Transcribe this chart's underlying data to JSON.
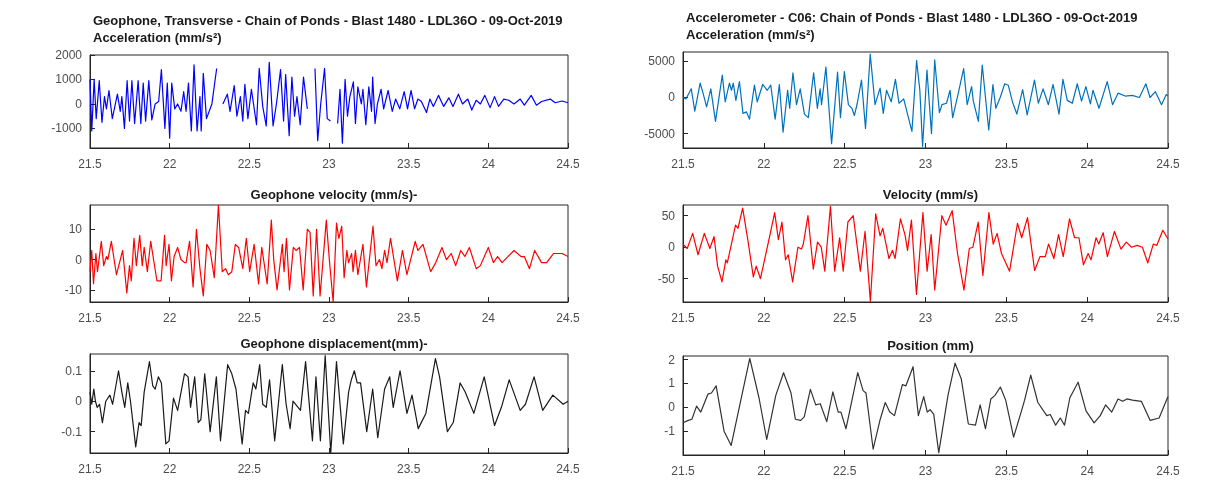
{
  "chart_data": [
    {
      "type": "line",
      "title": "Geophone, Transverse - Chain of Ponds - Blast 1480 - LDL36O - 09-Oct-2019",
      "subtitle": "Acceleration (mm/s²)",
      "color": "#0000ff",
      "xlim": [
        21.5,
        24.5
      ],
      "xticks": [
        21.5,
        22,
        22.5,
        23,
        23.5,
        24,
        24.5
      ],
      "ylim": [
        -1800,
        2000
      ],
      "yticks": [
        -1000,
        0,
        1000,
        2000
      ],
      "x": [
        21.5,
        21.511,
        21.526,
        21.539,
        21.558,
        21.575,
        21.591,
        21.603,
        21.619,
        21.64,
        21.672,
        21.69,
        21.7,
        21.716,
        21.733,
        21.748,
        21.763,
        21.78,
        21.802,
        21.819,
        21.834,
        21.849,
        21.869,
        21.888,
        21.909,
        21.931,
        21.948,
        21.97,
        21.985,
        22.0,
        22.013,
        22.032,
        22.05,
        22.071,
        22.088,
        22.103,
        22.118,
        22.136,
        22.153,
        22.172,
        22.19,
        22.198,
        22.211,
        22.231,
        22.265,
        22.295,
        22.317,
        22.334,
        22.362,
        22.379,
        22.405,
        22.422,
        22.444,
        22.459,
        22.472,
        22.491,
        22.513,
        22.545,
        22.562,
        22.584,
        22.606,
        22.625,
        22.649,
        22.67,
        22.696,
        22.715,
        22.728,
        22.75,
        22.767,
        22.784,
        22.799,
        22.819,
        22.84,
        22.864,
        22.89,
        22.912,
        22.929,
        22.948,
        22.972,
        22.989,
        23.009,
        23.034,
        23.054,
        23.069,
        23.084,
        23.101,
        23.116,
        23.131,
        23.153,
        23.166,
        23.181,
        23.203,
        23.213,
        23.231,
        23.25,
        23.267,
        23.274,
        23.289,
        23.304,
        23.327,
        23.343,
        23.371,
        23.397,
        23.418,
        23.444,
        23.472,
        23.493,
        23.515,
        23.537,
        23.558,
        23.58,
        23.612,
        23.633,
        23.655,
        23.687,
        23.72,
        23.752,
        23.778,
        23.812,
        23.838,
        23.871,
        23.896,
        23.924,
        23.95,
        23.978,
        24.011,
        24.039,
        24.064,
        24.097,
        24.129,
        24.161,
        24.2,
        24.226,
        24.269,
        24.302,
        24.334,
        24.388,
        24.42,
        24.463,
        24.5
      ],
      "values": [
        1000,
        -1100,
        1000,
        -600,
        950,
        -750,
        300,
        -200,
        550,
        -600,
        400,
        -300,
        300,
        -1000,
        950,
        -700,
        950,
        -800,
        950,
        -800,
        850,
        -700,
        950,
        -650,
        0,
        100,
        1400,
        -1000,
        850,
        -1400,
        850,
        -200,
        0,
        -300,
        500,
        -300,
        850,
        -1100,
        1600,
        -1100,
        300,
        -1100,
        1250,
        -600,
        0,
        1450,
        null,
        0,
        400,
        -300,
        750,
        -500,
        300,
        -700,
        800,
        -600,
        600,
        -850,
        1450,
        -100,
        -900,
        1700,
        -900,
        0,
        1400,
        -700,
        1200,
        -1300,
        1100,
        -500,
        300,
        -850,
        1100,
        -200,
        null,
        1450,
        -1500,
        0,
        1450,
        -600,
        -700,
        null,
        -800,
        600,
        -1600,
        1000,
        -500,
        300,
        900,
        -800,
        700,
        0,
        600,
        -850,
        700,
        -300,
        1100,
        -800,
        0,
        600,
        -200,
        550,
        -300,
        200,
        -200,
        500,
        -200,
        550,
        -200,
        200,
        100,
        -350,
        200,
        -100,
        350,
        -100,
        250,
        -100,
        400,
        0,
        200,
        -250,
        150,
        0,
        350,
        -150,
        300,
        -100,
        200,
        150,
        0,
        200,
        -50,
        350,
        -50,
        100,
        200,
        50,
        120,
        50
      ]
    },
    {
      "type": "line",
      "title": "Geophone velocity (mm/s)-",
      "color": "#ff0000",
      "xlim": [
        21.5,
        24.5
      ],
      "xticks": [
        21.5,
        22,
        22.5,
        23,
        23.5,
        24,
        24.5
      ],
      "ylim": [
        -14,
        18
      ],
      "yticks": [
        -10,
        0,
        10
      ],
      "x": [
        21.5,
        21.511,
        21.522,
        21.537,
        21.547,
        21.571,
        21.586,
        21.603,
        21.612,
        21.634,
        21.666,
        21.705,
        21.731,
        21.748,
        21.759,
        21.776,
        21.791,
        21.812,
        21.828,
        21.84,
        21.86,
        21.881,
        21.899,
        21.92,
        21.946,
        21.968,
        21.978,
        21.996,
        22.011,
        22.028,
        22.05,
        22.071,
        22.093,
        22.103,
        22.125,
        22.147,
        22.168,
        22.19,
        22.211,
        22.233,
        22.254,
        22.28,
        22.306,
        22.33,
        22.351,
        22.368,
        22.39,
        22.412,
        22.433,
        22.459,
        22.481,
        22.502,
        22.53,
        22.558,
        22.578,
        22.612,
        22.638,
        22.653,
        22.674,
        22.707,
        22.718,
        22.733,
        22.752,
        22.776,
        22.793,
        22.815,
        22.838,
        22.864,
        22.881,
        22.901,
        22.922,
        22.944,
        22.983,
        23.002,
        23.026,
        23.047,
        23.062,
        23.08,
        23.095,
        23.112,
        23.123,
        23.142,
        23.151,
        23.166,
        23.181,
        23.213,
        23.235,
        23.276,
        23.295,
        23.317,
        23.332,
        23.349,
        23.364,
        23.386,
        23.429,
        23.461,
        23.489,
        23.541,
        23.558,
        23.59,
        23.638,
        23.67,
        23.709,
        23.737,
        23.767,
        23.795,
        23.827,
        23.853,
        23.881,
        23.924,
        23.95,
        24.0,
        24.032,
        24.058,
        24.086,
        24.161,
        24.205,
        24.226,
        24.258,
        24.291,
        24.334,
        24.366,
        24.409,
        24.463,
        24.5
      ],
      "values": [
        -4,
        3,
        -8,
        2,
        -4,
        6,
        -2,
        1,
        0,
        6,
        -5,
        3,
        -11,
        -2,
        -7,
        7,
        -2,
        8,
        -2,
        4,
        -4,
        6,
        0,
        -7,
        -7,
        8,
        -2,
        5,
        -7,
        1,
        4,
        0,
        -1,
        -1,
        6,
        -9,
        10,
        -3,
        -12,
        5,
        3,
        -6,
        18,
        -4,
        -3,
        -5,
        -4,
        5,
        4,
        -3,
        7,
        -4,
        5,
        -8,
        4,
        -8,
        13,
        0,
        -10,
        5,
        -4,
        7,
        -10,
        4,
        3,
        4,
        -10,
        10,
        9,
        -12,
        10,
        -12,
        13,
        0,
        -14,
        12,
        7,
        11,
        -6,
        3,
        -1,
        2,
        -4,
        3,
        -5,
        5,
        -9,
        11,
        -2,
        0,
        -3,
        3,
        -1,
        7,
        -7,
        3,
        -5,
        6,
        3,
        5,
        -4,
        -1,
        4,
        0,
        2,
        -2,
        3,
        1,
        4,
        -3,
        -2,
        4,
        -1,
        1,
        -1,
        3,
        1,
        1,
        -3,
        3,
        -1,
        -1,
        2,
        2,
        1
      ]
    },
    {
      "type": "line",
      "title": "Geophone displacement(mm)-",
      "color": "#1a1a1a",
      "xlim": [
        21.5,
        24.5
      ],
      "xticks": [
        21.5,
        22,
        22.5,
        23,
        23.5,
        24,
        24.5
      ],
      "ylim": [
        -0.17,
        0.155
      ],
      "yticks": [
        -0.1,
        0,
        0.1
      ],
      "x": [
        21.5,
        21.511,
        21.524,
        21.534,
        21.545,
        21.56,
        21.578,
        21.599,
        21.625,
        21.642,
        21.679,
        21.7,
        21.718,
        21.737,
        21.754,
        21.787,
        21.808,
        21.821,
        21.84,
        21.873,
        21.894,
        21.909,
        21.929,
        21.948,
        21.976,
        21.996,
        22.024,
        22.05,
        22.093,
        22.116,
        22.131,
        22.157,
        22.179,
        22.196,
        22.22,
        22.254,
        22.293,
        22.319,
        22.364,
        22.39,
        22.416,
        22.455,
        22.476,
        22.494,
        22.524,
        22.541,
        22.565,
        22.584,
        22.606,
        22.627,
        22.659,
        22.707,
        22.731,
        22.756,
        22.774,
        22.821,
        22.853,
        22.896,
        22.918,
        22.946,
        22.976,
        23.011,
        23.047,
        23.09,
        23.123,
        23.14,
        23.159,
        23.177,
        23.198,
        23.237,
        23.274,
        23.306,
        23.349,
        23.381,
        23.403,
        23.446,
        23.489,
        23.521,
        23.56,
        23.608,
        23.668,
        23.694,
        23.743,
        23.78,
        23.823,
        23.855,
        23.909,
        23.974,
        24.039,
        24.082,
        24.131,
        24.2,
        24.233,
        24.287,
        24.341,
        24.405,
        24.47,
        24.5
      ],
      "values": [
        0.03,
        -0.01,
        0.04,
        0,
        -0.02,
        -0.01,
        -0.07,
        0,
        0.02,
        -0.01,
        0.1,
        0.03,
        -0.02,
        0.06,
        0,
        -0.15,
        -0.07,
        -0.08,
        0.03,
        0.13,
        0.05,
        0.04,
        0.08,
        0.06,
        -0.14,
        -0.13,
        0.01,
        -0.03,
        0.09,
        0.08,
        -0.02,
        0.08,
        -0.07,
        -0.06,
        0.09,
        -0.1,
        0.08,
        -0.13,
        0.12,
        0.09,
        0.04,
        -0.14,
        -0.03,
        -0.04,
        0.06,
        0.04,
        0.12,
        -0.01,
        -0.02,
        0.07,
        -0.13,
        0.12,
        -0.01,
        -0.09,
        0,
        -0.03,
        0.13,
        -0.13,
        0.08,
        -0.13,
        0.15,
        -0.17,
        0.13,
        -0.14,
        0.03,
        0.07,
        0.1,
        0.06,
        0.06,
        -0.1,
        0.04,
        -0.12,
        0.04,
        0.08,
        -0.02,
        0.1,
        -0.04,
        0.02,
        -0.09,
        -0.04,
        0.14,
        0.08,
        -0.1,
        -0.07,
        0.06,
        0.03,
        -0.04,
        0.08,
        -0.08,
        -0.02,
        0.07,
        -0.03,
        -0.01,
        0.08,
        -0.03,
        0.02,
        -0.01,
        0
      ]
    },
    {
      "type": "line",
      "title": "Accelerometer - C06: Chain of Ponds - Blast 1480 - LDL36O - 09-Oct-2019",
      "subtitle": "Acceleration (mm/s²)",
      "color": "#0072bd",
      "xlim": [
        21.5,
        24.5
      ],
      "xticks": [
        21.5,
        22,
        22.5,
        23,
        23.5,
        24,
        24.5
      ],
      "ylim": [
        -7000,
        6300
      ],
      "yticks": [
        -5000,
        0,
        5000
      ],
      "x": [
        21.5,
        21.518,
        21.551,
        21.573,
        21.606,
        21.624,
        21.646,
        21.672,
        21.701,
        21.743,
        21.761,
        21.787,
        21.8,
        21.811,
        21.827,
        21.849,
        21.871,
        21.893,
        21.911,
        21.942,
        21.959,
        21.993,
        22.021,
        22.043,
        22.07,
        22.096,
        22.119,
        22.147,
        22.16,
        22.18,
        22.202,
        22.225,
        22.251,
        22.275,
        22.308,
        22.331,
        22.348,
        22.357,
        22.384,
        22.419,
        22.456,
        22.474,
        22.498,
        22.523,
        22.545,
        22.56,
        22.578,
        22.604,
        22.629,
        22.658,
        22.688,
        22.719,
        22.739,
        22.759,
        22.788,
        22.814,
        22.836,
        22.865,
        22.916,
        22.945,
        22.965,
        22.982,
        23.009,
        23.037,
        23.057,
        23.086,
        23.102,
        23.13,
        23.152,
        23.168,
        23.197,
        23.236,
        23.258,
        23.285,
        23.296,
        23.327,
        23.351,
        23.391,
        23.417,
        23.435,
        23.462,
        23.49,
        23.512,
        23.539,
        23.565,
        23.601,
        23.629,
        23.674,
        23.698,
        23.727,
        23.76,
        23.789,
        23.826,
        23.85,
        23.877,
        23.908,
        23.939,
        23.965,
        23.992,
        24.02,
        24.036,
        24.073,
        24.124,
        24.157,
        24.191,
        24.235,
        24.279,
        24.323,
        24.363,
        24.389,
        24.422,
        24.46,
        24.489,
        24.5
      ],
      "values": [
        0,
        -200,
        1200,
        -1900,
        2000,
        600,
        -1300,
        1200,
        -3300,
        3100,
        -600,
        2000,
        1000,
        2000,
        -400,
        2200,
        -2200,
        -2000,
        -3000,
        1700,
        -600,
        1800,
        1000,
        1700,
        -3000,
        1800,
        -4800,
        1000,
        -1500,
        3400,
        -1000,
        1200,
        -2300,
        -2800,
        3400,
        -1500,
        1200,
        -1000,
        4200,
        -6400,
        3500,
        -2800,
        3600,
        -1000,
        -1500,
        -2500,
        -800,
        2400,
        -4300,
        6000,
        -1000,
        1300,
        -2200,
        1000,
        -600,
        2500,
        -800,
        -200,
        -4700,
        5100,
        1000,
        -6800,
        3800,
        -5000,
        5200,
        -2100,
        -1000,
        -800,
        1000,
        -2800,
        0,
        4000,
        -1000,
        1500,
        -500,
        -3300,
        4500,
        -4500,
        1800,
        -1500,
        0,
        1900,
        1700,
        -700,
        -2300,
        1100,
        -2400,
        2400,
        -800,
        1200,
        -1000,
        1800,
        -2300,
        2500,
        -400,
        -800,
        1900,
        -500,
        1500,
        -900,
        1000,
        -1500,
        2200,
        -1000,
        600,
        200,
        300,
        0,
        1900,
        0,
        800,
        -1000,
        400,
        200
      ]
    },
    {
      "type": "line",
      "title": "Velocity (mm/s)",
      "color": "#ff0000",
      "xlim": [
        21.5,
        24.5
      ],
      "xticks": [
        21.5,
        22,
        22.5,
        23,
        23.5,
        24,
        24.5
      ],
      "ylim": [
        -87,
        67
      ],
      "yticks": [
        -50,
        0,
        50
      ],
      "x": [
        21.5,
        21.526,
        21.56,
        21.593,
        21.632,
        21.666,
        21.692,
        21.714,
        21.741,
        21.765,
        21.774,
        21.825,
        21.84,
        21.869,
        21.902,
        21.935,
        21.953,
        21.979,
        22.034,
        22.067,
        22.09,
        22.112,
        22.134,
        22.151,
        22.178,
        22.211,
        22.233,
        22.244,
        22.273,
        22.306,
        22.332,
        22.355,
        22.377,
        22.412,
        22.438,
        22.469,
        22.491,
        22.52,
        22.553,
        22.597,
        22.626,
        22.659,
        22.692,
        22.719,
        22.736,
        22.774,
        22.796,
        22.812,
        22.845,
        22.873,
        22.889,
        22.913,
        22.944,
        22.984,
        23.01,
        23.035,
        23.057,
        23.101,
        23.127,
        23.165,
        23.198,
        23.238,
        23.271,
        23.293,
        23.326,
        23.355,
        23.392,
        23.419,
        23.443,
        23.47,
        23.52,
        23.569,
        23.595,
        23.631,
        23.675,
        23.708,
        23.741,
        23.761,
        23.794,
        23.823,
        23.852,
        23.891,
        23.922,
        23.949,
        23.977,
        24.006,
        24.024,
        24.055,
        24.072,
        24.099,
        24.125,
        24.169,
        24.209,
        24.242,
        24.275,
        24.309,
        24.342,
        24.375,
        24.409,
        24.431,
        24.468,
        24.5
      ],
      "values": [
        5,
        -2,
        22,
        -12,
        22,
        -2,
        17,
        -30,
        -55,
        -20,
        -25,
        35,
        30,
        62,
        10,
        -47,
        -30,
        -50,
        15,
        55,
        12,
        40,
        -20,
        -12,
        -55,
        0,
        -3,
        5,
        50,
        -35,
        8,
        0,
        -38,
        65,
        -38,
        15,
        -38,
        40,
        50,
        -38,
        25,
        -86,
        53,
        18,
        30,
        -18,
        -5,
        -18,
        45,
        20,
        -5,
        43,
        -75,
        55,
        -38,
        20,
        -68,
        50,
        35,
        58,
        -10,
        -68,
        -2,
        0,
        40,
        -45,
        55,
        5,
        22,
        -10,
        -38,
        38,
        15,
        47,
        -37,
        -15,
        -15,
        5,
        -18,
        20,
        -15,
        45,
        15,
        15,
        -28,
        -10,
        -20,
        15,
        5,
        23,
        -15,
        25,
        -3,
        8,
        0,
        3,
        0,
        -25,
        5,
        3,
        27,
        13
      ]
    },
    {
      "type": "line",
      "title": "Position (mm)",
      "color": "#333333",
      "xlim": [
        21.5,
        24.5
      ],
      "xticks": [
        21.5,
        22,
        22.5,
        23,
        23.5,
        24,
        24.5
      ],
      "ylim": [
        -2,
        2.15
      ],
      "yticks": [
        -1,
        0,
        1,
        2
      ],
      "x": [
        21.5,
        21.533,
        21.555,
        21.584,
        21.61,
        21.654,
        21.676,
        21.705,
        21.754,
        21.798,
        21.864,
        21.913,
        21.97,
        22.018,
        22.074,
        22.122,
        22.168,
        22.195,
        22.228,
        22.25,
        22.288,
        22.321,
        22.349,
        22.389,
        22.427,
        22.46,
        22.477,
        22.508,
        22.581,
        22.614,
        22.632,
        22.676,
        22.72,
        22.751,
        22.779,
        22.808,
        22.857,
        22.879,
        22.923,
        22.956,
        22.989,
        23.011,
        23.029,
        23.051,
        23.082,
        23.139,
        23.183,
        23.221,
        23.265,
        23.309,
        23.338,
        23.371,
        23.404,
        23.43,
        23.463,
        23.496,
        23.545,
        23.596,
        23.613,
        23.651,
        23.695,
        23.75,
        23.772,
        23.805,
        23.834,
        23.86,
        23.893,
        23.944,
        23.993,
        24.043,
        24.081,
        24.114,
        24.152,
        24.191,
        24.22,
        24.246,
        24.28,
        24.335,
        24.39,
        24.445,
        24.5
      ],
      "values": [
        -0.65,
        -0.55,
        -0.5,
        0.05,
        -0.2,
        0.55,
        0.6,
        0.9,
        -1.0,
        -1.6,
        0.5,
        2.05,
        0.4,
        -1.35,
        0.5,
        1.45,
        0.6,
        -0.5,
        -0.55,
        -0.4,
        0.75,
        0.1,
        0.15,
        -0.6,
        0.65,
        -0.2,
        -0.2,
        -0.9,
        1.45,
        0.7,
        0.6,
        -1.75,
        -0.5,
        0.2,
        -0.2,
        -0.35,
        0.95,
        0.9,
        1.7,
        -0.35,
        0.45,
        -0.2,
        -0.1,
        -0.3,
        -1.9,
        0.5,
        1.85,
        1.2,
        -0.7,
        -0.75,
        0.1,
        -0.9,
        0.35,
        0.5,
        0.85,
        0.3,
        -1.25,
        -0.1,
        0.3,
        1.35,
        0.2,
        -0.35,
        -0.3,
        -0.75,
        -0.45,
        -0.75,
        0.4,
        1.05,
        -0.15,
        -0.65,
        -0.35,
        0.1,
        -0.2,
        0.35,
        0.25,
        0.35,
        0.3,
        0.25,
        -0.55,
        -0.45,
        0.45
      ]
    }
  ]
}
